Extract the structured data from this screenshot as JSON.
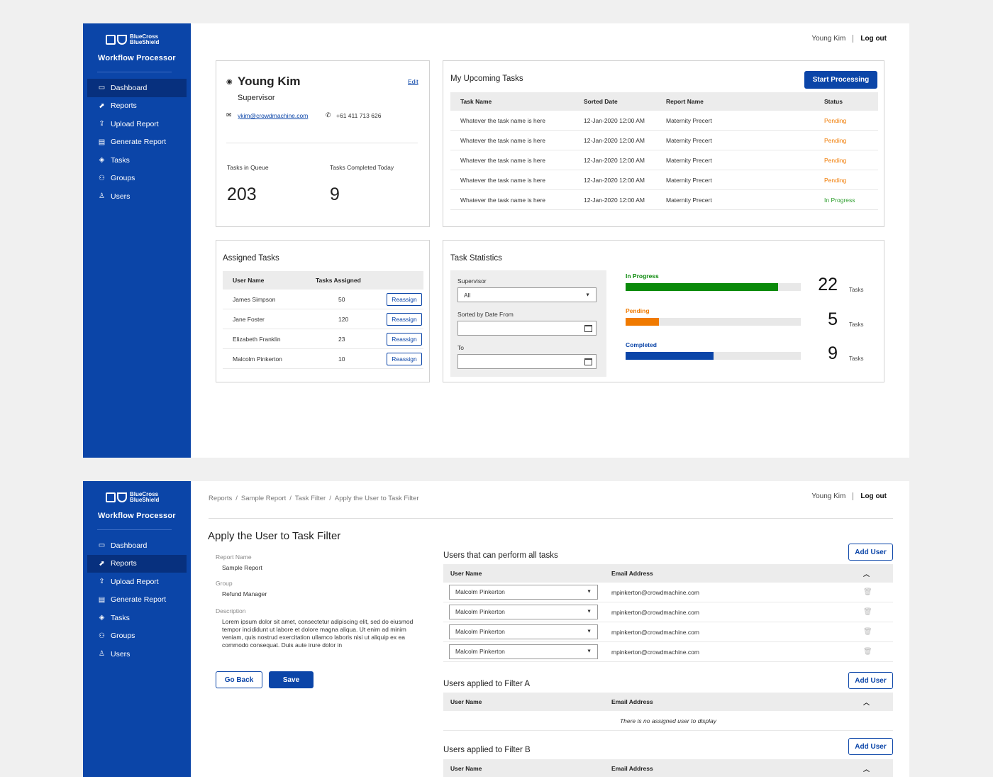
{
  "brand": {
    "line1": "BlueCross",
    "line2": "BlueShield",
    "app_title": "Workflow Processor"
  },
  "nav": [
    {
      "label": "Dashboard",
      "icon": "monitor-icon"
    },
    {
      "label": "Reports",
      "icon": "chart-icon"
    },
    {
      "label": "Upload Report",
      "icon": "upload-icon"
    },
    {
      "label": "Generate Report",
      "icon": "document-icon"
    },
    {
      "label": "Tasks",
      "icon": "layers-icon"
    },
    {
      "label": "Groups",
      "icon": "group-icon"
    },
    {
      "label": "Users",
      "icon": "user-icon"
    }
  ],
  "header": {
    "user_name": "Young Kim",
    "logout": "Log out"
  },
  "screen1": {
    "active_nav": "Dashboard",
    "profile": {
      "name": "Young Kim",
      "role": "Supervisor",
      "edit": "Edit",
      "email": "ykim@crowdmachine.com",
      "phone": "+61 411 713 626",
      "queue_label": "Tasks in Queue",
      "queue_value": "203",
      "done_label": "Tasks Completed Today",
      "done_value": "9"
    },
    "upcoming": {
      "title": "My Upcoming Tasks",
      "start_button": "Start Processing",
      "columns": [
        "Task Name",
        "Sorted Date",
        "Report Name",
        "Status"
      ],
      "rows": [
        {
          "task": "Whatever the task name is here",
          "date": "12-Jan-2020 12:00 AM",
          "report": "Maternity Precert",
          "status": "Pending"
        },
        {
          "task": "Whatever the task name is here",
          "date": "12-Jan-2020 12:00 AM",
          "report": "Maternity Precert",
          "status": "Pending"
        },
        {
          "task": "Whatever the task name is here",
          "date": "12-Jan-2020 12:00 AM",
          "report": "Maternity Precert",
          "status": "Pending"
        },
        {
          "task": "Whatever the task name is here",
          "date": "12-Jan-2020 12:00 AM",
          "report": "Maternity Precert",
          "status": "Pending"
        },
        {
          "task": "Whatever the task name is here",
          "date": "12-Jan-2020 12:00 AM",
          "report": "Maternity Precert",
          "status": "In Progress"
        }
      ]
    },
    "assigned": {
      "title": "Assigned Tasks",
      "columns": [
        "User Name",
        "Tasks Assigned"
      ],
      "button": "Reassign",
      "rows": [
        {
          "user": "James Simpson",
          "count": "50"
        },
        {
          "user": "Jane Foster",
          "count": "120"
        },
        {
          "user": "Elizabeth Franklin",
          "count": "23"
        },
        {
          "user": "Malcolm Pinkerton",
          "count": "10"
        }
      ]
    },
    "statistics": {
      "title": "Task Statistics",
      "supervisor_label": "Supervisor",
      "supervisor_value": "All",
      "from_label": "Sorted by Date From",
      "to_label": "To",
      "unit": "Tasks",
      "bars": [
        {
          "label": "In Progress",
          "value": "22",
          "fill": 0.87,
          "color": "#0a8a0a"
        },
        {
          "label": "Pending",
          "value": "5",
          "fill": 0.19,
          "color": "#f07a00"
        },
        {
          "label": "Completed",
          "value": "9",
          "fill": 0.5,
          "color": "#0b45a8"
        }
      ]
    }
  },
  "screen2": {
    "active_nav": "Reports",
    "breadcrumb": [
      "Reports",
      "Sample Report",
      "Task Filter",
      "Apply the User to Task Filter"
    ],
    "title": "Apply the User to Task Filter",
    "details": {
      "report_label": "Report Name",
      "report_value": "Sample Report",
      "group_label": "Group",
      "group_value": "Refund Manager",
      "desc_label": "Description",
      "desc_value": "Lorem ipsum dolor sit amet, consectetur adipiscing elit, sed do eiusmod tempor incididunt ut labore et dolore magna aliqua. Ut enim ad minim veniam, quis nostrud exercitation ullamco laboris nisi ut aliquip ex ea commodo consequat. Duis aute irure dolor in"
    },
    "go_back": "Go Back",
    "save": "Save",
    "add_user": "Add User",
    "col_user": "User Name",
    "col_email": "Email Address",
    "all_tasks": {
      "title": "Users that can perform all tasks",
      "rows": [
        {
          "user": "Malcolm Pinkerton",
          "email": "mpinkerton@crowdmachine.com"
        },
        {
          "user": "Malcolm Pinkerton",
          "email": "mpinkerton@crowdmachine.com"
        },
        {
          "user": "Malcolm Pinkerton",
          "email": "mpinkerton@crowdmachine.com"
        },
        {
          "user": "Malcolm Pinkerton",
          "email": "mpinkerton@crowdmachine.com"
        }
      ]
    },
    "filter_a": {
      "title": "Users applied to Filter A",
      "empty": "There is no assigned user to display"
    },
    "filter_b": {
      "title": "Users applied to Filter B"
    }
  }
}
